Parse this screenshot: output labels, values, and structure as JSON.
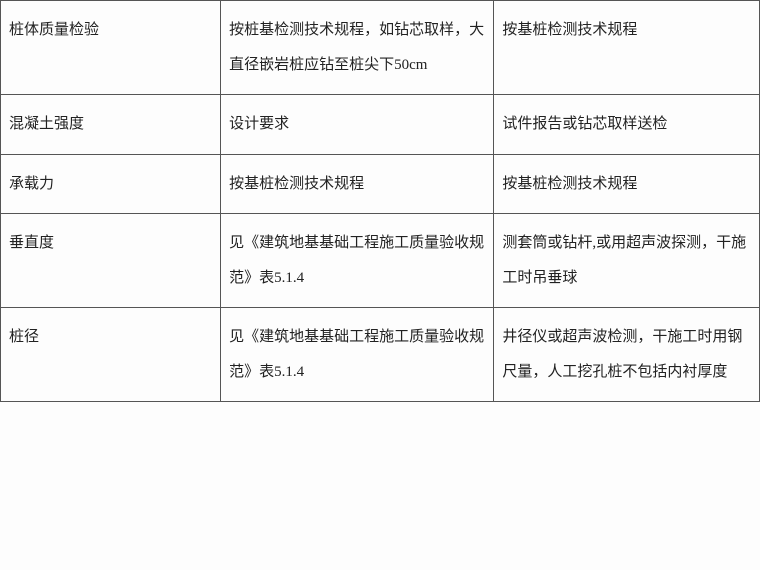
{
  "table": {
    "rows": [
      {
        "c1": "桩体质量检验",
        "c2": "按桩基检测技术规程，如钻芯取样，大直径嵌岩桩应钻至桩尖下50cm",
        "c3": "按基桩检测技术规程"
      },
      {
        "c1": "混凝土强度",
        "c2": "设计要求",
        "c3": "试件报告或钻芯取样送检"
      },
      {
        "c1": "承载力",
        "c2": "按基桩检测技术规程",
        "c3": "按基桩检测技术规程"
      },
      {
        "c1": "垂直度",
        "c2": "见《建筑地基基础工程施工质量验收规范》表5.1.4",
        "c3": "测套筒或钻杆,或用超声波探测，干施工时吊垂球"
      },
      {
        "c1": "桩径",
        "c2": "见《建筑地基基础工程施工质量验收规范》表5.1.4",
        "c3": "井径仪或超声波检测，干施工时用钢尺量，人工挖孔桩不包括内衬厚度"
      }
    ]
  },
  "styling": {
    "border_color": "#555555",
    "text_color": "#222222",
    "background_color": "#fdfdfd",
    "font_family": "SimSun",
    "cell_font_size": 15,
    "line_height": 2.3,
    "col_widths_percent": [
      29,
      36,
      35
    ]
  }
}
